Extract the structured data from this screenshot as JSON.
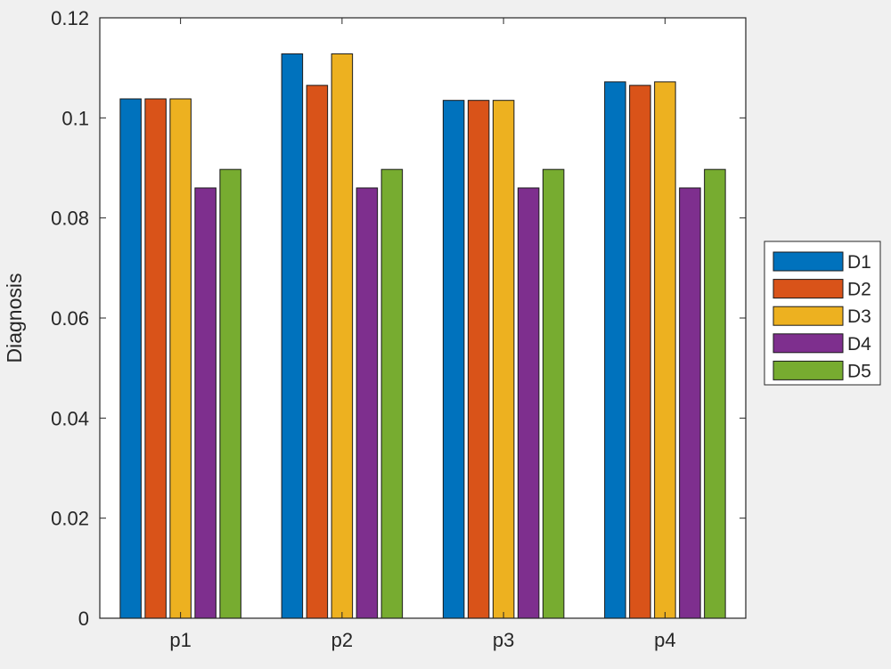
{
  "chart_data": {
    "type": "bar",
    "categories": [
      "p1",
      "p2",
      "p3",
      "p4"
    ],
    "series": [
      {
        "name": "D1",
        "color": "#0072BD",
        "values": [
          0.1038,
          0.1128,
          0.1035,
          0.1072
        ]
      },
      {
        "name": "D2",
        "color": "#D95319",
        "values": [
          0.1038,
          0.1065,
          0.1035,
          0.1065
        ]
      },
      {
        "name": "D3",
        "color": "#EDB120",
        "values": [
          0.1038,
          0.1128,
          0.1035,
          0.1072
        ]
      },
      {
        "name": "D4",
        "color": "#7E2F8E",
        "values": [
          0.086,
          0.086,
          0.086,
          0.086
        ]
      },
      {
        "name": "D5",
        "color": "#77AC30",
        "values": [
          0.0897,
          0.0897,
          0.0897,
          0.0897
        ]
      }
    ],
    "ylabel": "Diagnosis",
    "xlabel": "",
    "ylim": [
      0,
      0.12
    ],
    "yticks": [
      "0",
      "0.02",
      "0.04",
      "0.06",
      "0.08",
      "0.1",
      "0.12"
    ],
    "ytick_values": [
      0,
      0.02,
      0.04,
      0.06,
      0.08,
      0.1,
      0.12
    ],
    "legend_position": "outside-right",
    "grid": false
  }
}
